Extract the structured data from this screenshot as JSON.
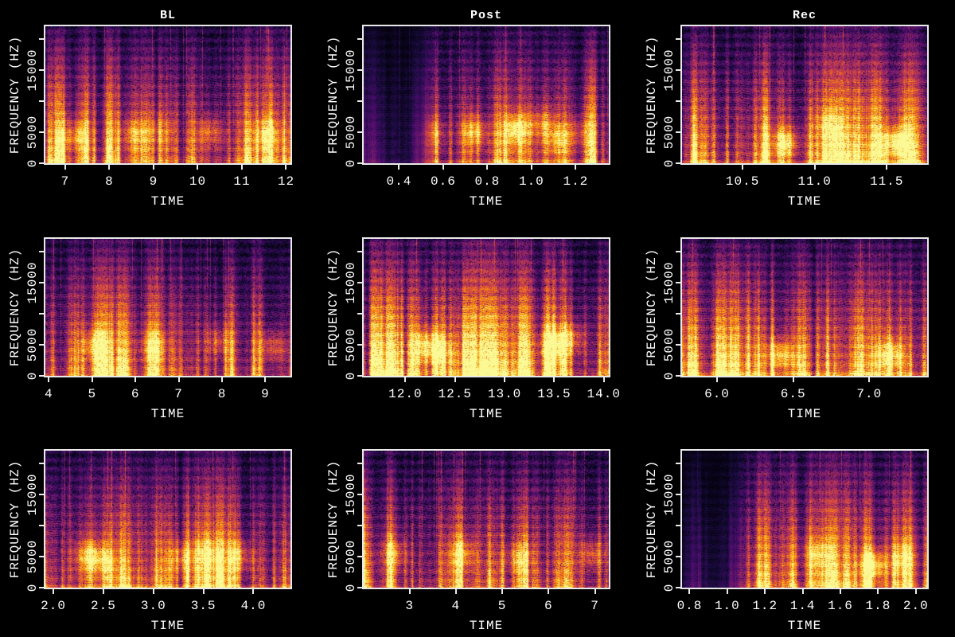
{
  "figure": {
    "background": "#000000",
    "text_color": "#ffffff",
    "axis_color": "#e9e9e9",
    "colormap": "inferno",
    "colormap_stops": [
      "#000004",
      "#1b0c41",
      "#4a0c6b",
      "#781c6d",
      "#a52c60",
      "#cf4446",
      "#ed6925",
      "#fb9b06",
      "#f7d13d",
      "#fcffa4"
    ],
    "layout": {
      "rows": 3,
      "cols": 3
    },
    "column_titles": [
      "BL",
      "Post",
      "Rec"
    ]
  },
  "chart_data": [
    {
      "type": "heatmap",
      "subtype": "spectrogram",
      "title": "BL",
      "xlabel": "TIME",
      "ylabel": "FREQUENCY (HZ)",
      "x_min": 6.55,
      "x_max": 12.1,
      "y_min": 0,
      "y_max": 22050,
      "x_ticks": [
        {
          "v": 7,
          "label": "7"
        },
        {
          "v": 8,
          "label": "8"
        },
        {
          "v": 9,
          "label": "9"
        },
        {
          "v": 10,
          "label": "10"
        },
        {
          "v": 11,
          "label": "11"
        },
        {
          "v": 12,
          "label": "12"
        }
      ],
      "y_ticks": [
        {
          "v": 0,
          "label": "0"
        },
        {
          "v": 5000,
          "label": "5000"
        },
        {
          "v": 10000,
          "label": ""
        },
        {
          "v": 15000,
          "label": "15000"
        },
        {
          "v": 20000,
          "label": ""
        }
      ],
      "texture": {
        "seed": 11,
        "dark_left": 0,
        "warmth": 1.0,
        "blobs": [
          [
            0.12,
            4500,
            0.34
          ],
          [
            0.36,
            4800,
            0.3
          ],
          [
            0.47,
            5200,
            0.22
          ],
          [
            0.67,
            5000,
            0.32
          ],
          [
            0.9,
            4800,
            0.32
          ]
        ]
      }
    },
    {
      "type": "heatmap",
      "subtype": "spectrogram",
      "title": "Post",
      "xlabel": "TIME",
      "ylabel": "FREQUENCY (HZ)",
      "x_min": 0.24,
      "x_max": 1.35,
      "y_min": 0,
      "y_max": 22050,
      "x_ticks": [
        {
          "v": 0.4,
          "label": "0.4"
        },
        {
          "v": 0.6,
          "label": "0.6"
        },
        {
          "v": 0.8,
          "label": "0.8"
        },
        {
          "v": 1.0,
          "label": "1.0"
        },
        {
          "v": 1.2,
          "label": "1.2"
        }
      ],
      "y_ticks": [
        {
          "v": 0,
          "label": "0"
        },
        {
          "v": 5000,
          "label": "5000"
        },
        {
          "v": 10000,
          "label": ""
        },
        {
          "v": 15000,
          "label": "15000"
        },
        {
          "v": 20000,
          "label": ""
        }
      ],
      "texture": {
        "seed": 22,
        "dark_left": 0.24,
        "warmth": 1.0,
        "blobs": [
          [
            0.28,
            5000,
            0.3
          ],
          [
            0.45,
            5200,
            0.45
          ],
          [
            0.62,
            5500,
            0.52
          ],
          [
            0.73,
            6500,
            0.3
          ],
          [
            0.79,
            4000,
            0.32
          ],
          [
            0.88,
            5200,
            0.22
          ]
        ]
      }
    },
    {
      "type": "heatmap",
      "subtype": "spectrogram",
      "title": "Rec",
      "xlabel": "TIME",
      "ylabel": "FREQUENCY (HZ)",
      "x_min": 10.08,
      "x_max": 11.78,
      "y_min": 0,
      "y_max": 22050,
      "x_ticks": [
        {
          "v": 10.5,
          "label": "10.5"
        },
        {
          "v": 11.0,
          "label": "11.0"
        },
        {
          "v": 11.5,
          "label": "11.5"
        }
      ],
      "y_ticks": [
        {
          "v": 0,
          "label": "0"
        },
        {
          "v": 5000,
          "label": "5000"
        },
        {
          "v": 10000,
          "label": ""
        },
        {
          "v": 15000,
          "label": "15000"
        },
        {
          "v": 20000,
          "label": ""
        }
      ],
      "texture": {
        "seed": 33,
        "dark_left": 0,
        "warmth": 1.05,
        "blobs": [
          [
            0.42,
            3400,
            0.46
          ],
          [
            0.6,
            6000,
            0.2
          ],
          [
            0.87,
            3400,
            0.46
          ]
        ]
      }
    },
    {
      "type": "heatmap",
      "subtype": "spectrogram",
      "title": "",
      "xlabel": "TIME",
      "ylabel": "FREQUENCY (HZ)",
      "x_min": 3.92,
      "x_max": 9.58,
      "y_min": 0,
      "y_max": 22050,
      "x_ticks": [
        {
          "v": 4,
          "label": "4"
        },
        {
          "v": 5,
          "label": "5"
        },
        {
          "v": 6,
          "label": "6"
        },
        {
          "v": 7,
          "label": "7"
        },
        {
          "v": 8,
          "label": "8"
        },
        {
          "v": 9,
          "label": "9"
        }
      ],
      "y_ticks": [
        {
          "v": 0,
          "label": "0"
        },
        {
          "v": 5000,
          "label": "5000"
        },
        {
          "v": 10000,
          "label": ""
        },
        {
          "v": 15000,
          "label": "15000"
        },
        {
          "v": 20000,
          "label": ""
        }
      ],
      "texture": {
        "seed": 44,
        "dark_left": 0,
        "warmth": 1.0,
        "blobs": [
          [
            0.2,
            5000,
            0.36
          ],
          [
            0.44,
            5000,
            0.28
          ],
          [
            0.7,
            5500,
            0.28
          ],
          [
            0.93,
            4800,
            0.32
          ]
        ]
      }
    },
    {
      "type": "heatmap",
      "subtype": "spectrogram",
      "title": "",
      "xlabel": "TIME",
      "ylabel": "FREQUENCY (HZ)",
      "x_min": 11.58,
      "x_max": 14.05,
      "y_min": 0,
      "y_max": 22050,
      "x_ticks": [
        {
          "v": 12.0,
          "label": "12.0"
        },
        {
          "v": 12.5,
          "label": "12.5"
        },
        {
          "v": 13.0,
          "label": "13.0"
        },
        {
          "v": 13.5,
          "label": "13.5"
        },
        {
          "v": 14.0,
          "label": "14.0"
        }
      ],
      "y_ticks": [
        {
          "v": 0,
          "label": "0"
        },
        {
          "v": 5000,
          "label": "5000"
        },
        {
          "v": 10000,
          "label": ""
        },
        {
          "v": 15000,
          "label": "15000"
        },
        {
          "v": 20000,
          "label": ""
        }
      ],
      "texture": {
        "seed": 55,
        "dark_left": 0,
        "warmth": 1.12,
        "blobs": [
          [
            0.25,
            5000,
            0.36
          ],
          [
            0.31,
            4000,
            0.3
          ],
          [
            0.77,
            5000,
            0.36
          ],
          [
            0.85,
            6000,
            0.28
          ]
        ]
      }
    },
    {
      "type": "heatmap",
      "subtype": "spectrogram",
      "title": "",
      "xlabel": "TIME",
      "ylabel": "FREQUENCY (HZ)",
      "x_min": 5.77,
      "x_max": 7.38,
      "y_min": 0,
      "y_max": 22050,
      "x_ticks": [
        {
          "v": 6.0,
          "label": "6.0"
        },
        {
          "v": 6.5,
          "label": "6.5"
        },
        {
          "v": 7.0,
          "label": "7.0"
        }
      ],
      "y_ticks": [
        {
          "v": 0,
          "label": "0"
        },
        {
          "v": 5000,
          "label": "5000"
        },
        {
          "v": 10000,
          "label": ""
        },
        {
          "v": 15000,
          "label": "15000"
        },
        {
          "v": 20000,
          "label": ""
        }
      ],
      "texture": {
        "seed": 66,
        "dark_left": 0,
        "warmth": 1.05,
        "blobs": [
          [
            0.4,
            3400,
            0.44
          ],
          [
            0.85,
            3400,
            0.42
          ]
        ]
      }
    },
    {
      "type": "heatmap",
      "subtype": "spectrogram",
      "title": "",
      "xlabel": "TIME",
      "ylabel": "FREQUENCY (HZ)",
      "x_min": 1.92,
      "x_max": 4.37,
      "y_min": 0,
      "y_max": 22050,
      "x_ticks": [
        {
          "v": 2.0,
          "label": "2.0"
        },
        {
          "v": 2.5,
          "label": "2.5"
        },
        {
          "v": 3.0,
          "label": "3.0"
        },
        {
          "v": 3.5,
          "label": "3.5"
        },
        {
          "v": 4.0,
          "label": "4.0"
        }
      ],
      "y_ticks": [
        {
          "v": 0,
          "label": "0"
        },
        {
          "v": 5000,
          "label": "5000"
        },
        {
          "v": 10000,
          "label": ""
        },
        {
          "v": 15000,
          "label": "15000"
        },
        {
          "v": 20000,
          "label": ""
        }
      ],
      "texture": {
        "seed": 77,
        "dark_left": 0,
        "warmth": 1.0,
        "blobs": [
          [
            0.17,
            5200,
            0.36
          ],
          [
            0.23,
            4500,
            0.3
          ],
          [
            0.55,
            4800,
            0.3
          ],
          [
            0.66,
            5500,
            0.3
          ],
          [
            0.79,
            5200,
            0.34
          ]
        ]
      }
    },
    {
      "type": "heatmap",
      "subtype": "spectrogram",
      "title": "",
      "xlabel": "TIME",
      "ylabel": "FREQUENCY (HZ)",
      "x_min": 2.01,
      "x_max": 7.3,
      "y_min": 0,
      "y_max": 22050,
      "x_ticks": [
        {
          "v": 3,
          "label": "3"
        },
        {
          "v": 4,
          "label": "4"
        },
        {
          "v": 5,
          "label": "5"
        },
        {
          "v": 6,
          "label": "6"
        },
        {
          "v": 7,
          "label": "7"
        }
      ],
      "y_ticks": [
        {
          "v": 0,
          "label": "0"
        },
        {
          "v": 5000,
          "label": "5000"
        },
        {
          "v": 10000,
          "label": ""
        },
        {
          "v": 15000,
          "label": "15000"
        },
        {
          "v": 20000,
          "label": ""
        }
      ],
      "texture": {
        "seed": 88,
        "dark_left": 0,
        "warmth": 1.08,
        "blobs": [
          [
            0.12,
            5500,
            0.3
          ],
          [
            0.4,
            5500,
            0.32
          ],
          [
            0.63,
            5000,
            0.28
          ],
          [
            0.93,
            5500,
            0.3
          ]
        ]
      }
    },
    {
      "type": "heatmap",
      "subtype": "spectrogram",
      "title": "",
      "xlabel": "TIME",
      "ylabel": "FREQUENCY (HZ)",
      "x_min": 0.76,
      "x_max": 2.06,
      "y_min": 0,
      "y_max": 22050,
      "x_ticks": [
        {
          "v": 0.8,
          "label": "0.8"
        },
        {
          "v": 1.0,
          "label": "1.0"
        },
        {
          "v": 1.2,
          "label": "1.2"
        },
        {
          "v": 1.4,
          "label": "1.4"
        },
        {
          "v": 1.6,
          "label": "1.6"
        },
        {
          "v": 1.8,
          "label": "1.8"
        },
        {
          "v": 2.0,
          "label": "2.0"
        }
      ],
      "y_ticks": [
        {
          "v": 0,
          "label": "0"
        },
        {
          "v": 5000,
          "label": "5000"
        },
        {
          "v": 10000,
          "label": ""
        },
        {
          "v": 15000,
          "label": "15000"
        },
        {
          "v": 20000,
          "label": ""
        }
      ],
      "texture": {
        "seed": 99,
        "dark_left": 0.22,
        "warmth": 0.98,
        "blobs": [
          [
            0.55,
            5500,
            0.3
          ],
          [
            0.78,
            3600,
            0.52
          ],
          [
            0.9,
            5000,
            0.3
          ]
        ]
      }
    }
  ]
}
